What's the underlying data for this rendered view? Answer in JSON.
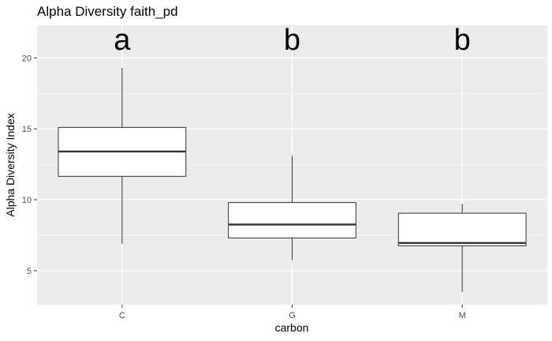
{
  "chart_data": {
    "type": "boxplot",
    "title": "Alpha Diversity faith_pd",
    "xlabel": "carbon",
    "ylabel": "Alpha Diversity Index",
    "categories": [
      "C",
      "G",
      "M"
    ],
    "boxes": [
      {
        "category": "C",
        "whisker_low": 6.9,
        "q1": 11.65,
        "median": 13.4,
        "q3": 15.1,
        "whisker_high": 19.3,
        "letter": "a"
      },
      {
        "category": "G",
        "whisker_low": 5.75,
        "q1": 7.3,
        "median": 8.25,
        "q3": 9.8,
        "whisker_high": 13.1,
        "letter": "b"
      },
      {
        "category": "M",
        "whisker_low": 3.5,
        "q1": 6.75,
        "median": 6.95,
        "q3": 9.05,
        "whisker_high": 9.7,
        "letter": "b"
      }
    ],
    "yticks": [
      5,
      10,
      15,
      20
    ],
    "ylim": [
      2.6,
      22.3
    ],
    "grid": true,
    "panel_color": "#ebebeb",
    "box_fill": "#ffffff",
    "line_color": "#333333"
  }
}
